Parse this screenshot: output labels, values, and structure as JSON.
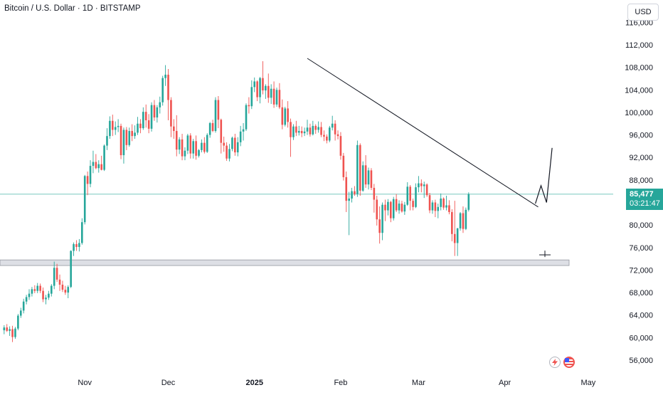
{
  "header": {
    "symbol_title": "Bitcoin / U.S. Dollar · 1D · BITSTAMP"
  },
  "currency_button": {
    "label": "USD"
  },
  "last_price": {
    "price": "85,477",
    "countdown": "03:21:47"
  },
  "colors": {
    "up": "#26a69a",
    "down": "#ef5350",
    "grid": "#f0f3fa",
    "support_zone": "#d1d4dc",
    "trendline": "#131722"
  },
  "chart_data": {
    "type": "candlestick",
    "title": "Bitcoin / U.S. Dollar · 1D · BITSTAMP",
    "y_ticks": [
      "116,000",
      "112,000",
      "108,000",
      "104,000",
      "100,000",
      "96,000",
      "92,000",
      "88,000",
      "84,000",
      "80,000",
      "76,000",
      "72,000",
      "68,000",
      "64,000",
      "60,000",
      "56,000"
    ],
    "x_ticks": [
      "Nov",
      "Dec",
      "2025",
      "Feb",
      "Mar",
      "Apr",
      "May"
    ],
    "ylim": [
      52600,
      118000
    ],
    "grid": false,
    "candles": [
      [
        61300,
        62200,
        60600,
        61800
      ],
      [
        61800,
        62400,
        61000,
        61200
      ],
      [
        61200,
        62000,
        60300,
        61500
      ],
      [
        61500,
        62100,
        59200,
        60100
      ],
      [
        60100,
        61900,
        59800,
        61600
      ],
      [
        61600,
        64200,
        61300,
        63900
      ],
      [
        63900,
        65300,
        63500,
        64800
      ],
      [
        64800,
        66900,
        64300,
        66400
      ],
      [
        66400,
        67600,
        65900,
        67200
      ],
      [
        67200,
        68600,
        66700,
        67800
      ],
      [
        67800,
        69000,
        67300,
        68600
      ],
      [
        68600,
        69300,
        67900,
        68300
      ],
      [
        68300,
        69700,
        67900,
        69200
      ],
      [
        69200,
        69600,
        67900,
        68300
      ],
      [
        68300,
        68900,
        66300,
        66800
      ],
      [
        66800,
        67600,
        65900,
        67100
      ],
      [
        67100,
        68300,
        66700,
        67800
      ],
      [
        67800,
        69500,
        67300,
        69200
      ],
      [
        69200,
        73500,
        68600,
        72400
      ],
      [
        72400,
        73100,
        69900,
        70300
      ],
      [
        70300,
        71200,
        68300,
        69400
      ],
      [
        69400,
        70100,
        68100,
        68500
      ],
      [
        68500,
        69200,
        67600,
        68000
      ],
      [
        68000,
        69300,
        67000,
        69000
      ],
      [
        69000,
        75500,
        68800,
        75400
      ],
      [
        75400,
        76900,
        74500,
        76600
      ],
      [
        76600,
        77300,
        75400,
        76100
      ],
      [
        76100,
        77500,
        75300,
        76800
      ],
      [
        76800,
        81200,
        76500,
        80500
      ],
      [
        80500,
        88900,
        80100,
        88700
      ],
      [
        88700,
        89500,
        85300,
        87300
      ],
      [
        87300,
        91500,
        86700,
        90500
      ],
      [
        90500,
        93200,
        89200,
        91200
      ],
      [
        91200,
        92600,
        89900,
        90100
      ],
      [
        90100,
        91500,
        89300,
        90800
      ],
      [
        90800,
        92300,
        89700,
        89800
      ],
      [
        89800,
        94300,
        89600,
        94100
      ],
      [
        94100,
        97200,
        93300,
        95800
      ],
      [
        95800,
        99300,
        95300,
        98500
      ],
      [
        98500,
        99600,
        95800,
        96900
      ],
      [
        96900,
        98400,
        96000,
        97400
      ],
      [
        97400,
        98800,
        96500,
        97600
      ],
      [
        97600,
        98000,
        91700,
        92400
      ],
      [
        92400,
        97300,
        90900,
        96900
      ],
      [
        96900,
        97400,
        93300,
        94200
      ],
      [
        94200,
        97300,
        93900,
        96700
      ],
      [
        96700,
        97900,
        94900,
        95800
      ],
      [
        95800,
        97700,
        95300,
        96400
      ],
      [
        96400,
        99200,
        96000,
        98000
      ],
      [
        98000,
        98800,
        96300,
        97200
      ],
      [
        97200,
        100900,
        96900,
        100100
      ],
      [
        100100,
        101400,
        97300,
        98600
      ],
      [
        98600,
        99700,
        96300,
        97100
      ],
      [
        97100,
        101800,
        96600,
        101300
      ],
      [
        101300,
        102200,
        98500,
        99100
      ],
      [
        99100,
        101300,
        98200,
        100900
      ],
      [
        100900,
        102800,
        99800,
        101800
      ],
      [
        101800,
        106500,
        101200,
        106100
      ],
      [
        106100,
        108400,
        104700,
        106700
      ],
      [
        106700,
        107700,
        98600,
        102200
      ],
      [
        102200,
        102700,
        95600,
        97500
      ],
      [
        97500,
        98800,
        95300,
        96700
      ],
      [
        96700,
        99500,
        92200,
        93400
      ],
      [
        93400,
        95600,
        92600,
        95200
      ],
      [
        95200,
        96200,
        91500,
        92200
      ],
      [
        92200,
        93800,
        91500,
        93200
      ],
      [
        93200,
        96200,
        92600,
        95900
      ],
      [
        95900,
        96300,
        91800,
        92700
      ],
      [
        92700,
        95300,
        91800,
        94900
      ],
      [
        94900,
        95900,
        91600,
        92300
      ],
      [
        92300,
        93500,
        92000,
        93300
      ],
      [
        93300,
        95200,
        92900,
        94600
      ],
      [
        94600,
        95600,
        92700,
        93000
      ],
      [
        93000,
        96300,
        92800,
        96000
      ],
      [
        96000,
        98300,
        95500,
        98100
      ],
      [
        98100,
        98700,
        96500,
        96700
      ],
      [
        96700,
        102700,
        96400,
        102200
      ],
      [
        102200,
        102900,
        97200,
        98700
      ],
      [
        98700,
        98900,
        92700,
        94600
      ],
      [
        94600,
        95700,
        93000,
        94100
      ],
      [
        94100,
        94700,
        91400,
        91800
      ],
      [
        91800,
        94400,
        91300,
        93500
      ],
      [
        93500,
        95700,
        93100,
        95500
      ],
      [
        95500,
        96200,
        92300,
        92900
      ],
      [
        92900,
        95600,
        92200,
        94700
      ],
      [
        94700,
        97600,
        94000,
        96600
      ],
      [
        96600,
        98100,
        95000,
        97000
      ],
      [
        97000,
        101600,
        96700,
        101300
      ],
      [
        101300,
        102700,
        99800,
        101100
      ],
      [
        101100,
        105700,
        100600,
        104500
      ],
      [
        104500,
        106200,
        103600,
        105500
      ],
      [
        105500,
        105700,
        102000,
        102700
      ],
      [
        102700,
        106300,
        101600,
        106100
      ],
      [
        106100,
        109100,
        103200,
        103900
      ],
      [
        103900,
        105000,
        102400,
        104700
      ],
      [
        104700,
        106900,
        101700,
        102600
      ],
      [
        102600,
        105000,
        101500,
        104200
      ],
      [
        104200,
        105500,
        100800,
        101400
      ],
      [
        101400,
        104400,
        101000,
        104000
      ],
      [
        104000,
        105200,
        100600,
        100900
      ],
      [
        100900,
        102300,
        97000,
        97800
      ],
      [
        97800,
        101000,
        97500,
        100700
      ],
      [
        100700,
        102000,
        97300,
        98300
      ],
      [
        98300,
        98900,
        92100,
        95600
      ],
      [
        95600,
        97900,
        95100,
        97500
      ],
      [
        97500,
        98500,
        95800,
        96400
      ],
      [
        96400,
        97600,
        95900,
        96700
      ],
      [
        96700,
        97500,
        95600,
        96300
      ],
      [
        96300,
        97300,
        95800,
        96600
      ],
      [
        96600,
        98700,
        96000,
        97300
      ],
      [
        97300,
        98000,
        95700,
        96100
      ],
      [
        96100,
        98500,
        95900,
        97600
      ],
      [
        97600,
        97900,
        96200,
        96900
      ],
      [
        96900,
        98400,
        96400,
        97400
      ],
      [
        97400,
        98300,
        95600,
        96000
      ],
      [
        96000,
        96800,
        94900,
        95700
      ],
      [
        95700,
        96100,
        94500,
        95000
      ],
      [
        95000,
        97600,
        94700,
        97300
      ],
      [
        97300,
        99400,
        96800,
        98000
      ],
      [
        98000,
        98600,
        95000,
        96100
      ],
      [
        96100,
        96800,
        95200,
        95800
      ],
      [
        95800,
        96500,
        91600,
        92300
      ],
      [
        92300,
        92800,
        87900,
        88500
      ],
      [
        88500,
        89500,
        82300,
        84300
      ],
      [
        84300,
        85900,
        78200,
        84700
      ],
      [
        84700,
        86600,
        84000,
        86000
      ],
      [
        86000,
        86900,
        85200,
        85500
      ],
      [
        85500,
        95000,
        85000,
        94200
      ],
      [
        94200,
        94500,
        85200,
        86100
      ],
      [
        86100,
        91300,
        85900,
        90600
      ],
      [
        90600,
        92400,
        86600,
        87200
      ],
      [
        87200,
        90200,
        86300,
        89700
      ],
      [
        89700,
        90100,
        86200,
        86600
      ],
      [
        86600,
        87300,
        82200,
        84500
      ],
      [
        84500,
        85200,
        79900,
        81000
      ],
      [
        81000,
        83300,
        76700,
        78600
      ],
      [
        78600,
        84000,
        77300,
        83600
      ],
      [
        83600,
        84500,
        80700,
        82600
      ],
      [
        82600,
        84600,
        81700,
        84100
      ],
      [
        84100,
        84300,
        80500,
        81200
      ],
      [
        81200,
        85000,
        80800,
        84600
      ],
      [
        84600,
        85500,
        82300,
        82600
      ],
      [
        82600,
        84400,
        82000,
        83800
      ],
      [
        83800,
        84300,
        82200,
        82400
      ],
      [
        82400,
        84100,
        81800,
        83600
      ],
      [
        83600,
        87600,
        83400,
        86800
      ],
      [
        86800,
        87100,
        82600,
        84300
      ],
      [
        84300,
        84700,
        82600,
        83200
      ],
      [
        83200,
        87400,
        83000,
        86700
      ],
      [
        86700,
        88700,
        85800,
        87400
      ],
      [
        87400,
        88100,
        85800,
        86900
      ],
      [
        86900,
        87700,
        84800,
        87200
      ],
      [
        87200,
        87400,
        85000,
        85300
      ],
      [
        85300,
        85700,
        82100,
        82600
      ],
      [
        82600,
        84400,
        82000,
        84000
      ],
      [
        84000,
        84500,
        81400,
        82500
      ],
      [
        82500,
        83800,
        81200,
        83200
      ],
      [
        83200,
        85600,
        82600,
        84700
      ],
      [
        84700,
        84900,
        82700,
        83100
      ],
      [
        83100,
        85200,
        82600,
        83500
      ],
      [
        83500,
        84400,
        81900,
        82300
      ],
      [
        82300,
        82800,
        77100,
        78400
      ],
      [
        78400,
        84300,
        74500,
        76800
      ],
      [
        76800,
        79500,
        74500,
        79400
      ],
      [
        79400,
        82300,
        79000,
        82100
      ],
      [
        82100,
        83300,
        78600,
        79300
      ],
      [
        79300,
        83100,
        79100,
        82700
      ],
      [
        82700,
        85800,
        82400,
        85477
      ]
    ],
    "annotations": [
      {
        "type": "trendline",
        "from": [
          "2025-01-20",
          109600
        ],
        "to": [
          "2025-04-13",
          83200
        ]
      },
      {
        "type": "support_zone",
        "ylo": 72800,
        "yhi": 73800
      },
      {
        "type": "projection_path",
        "points": [
          [
            "2025-04-12",
            83800
          ],
          [
            "2025-04-14",
            87000
          ],
          [
            "2025-04-16",
            84000
          ],
          [
            "2025-04-18",
            93700
          ]
        ]
      },
      {
        "type": "low_marker",
        "price": 74700
      }
    ],
    "last_price_line": 85477
  }
}
